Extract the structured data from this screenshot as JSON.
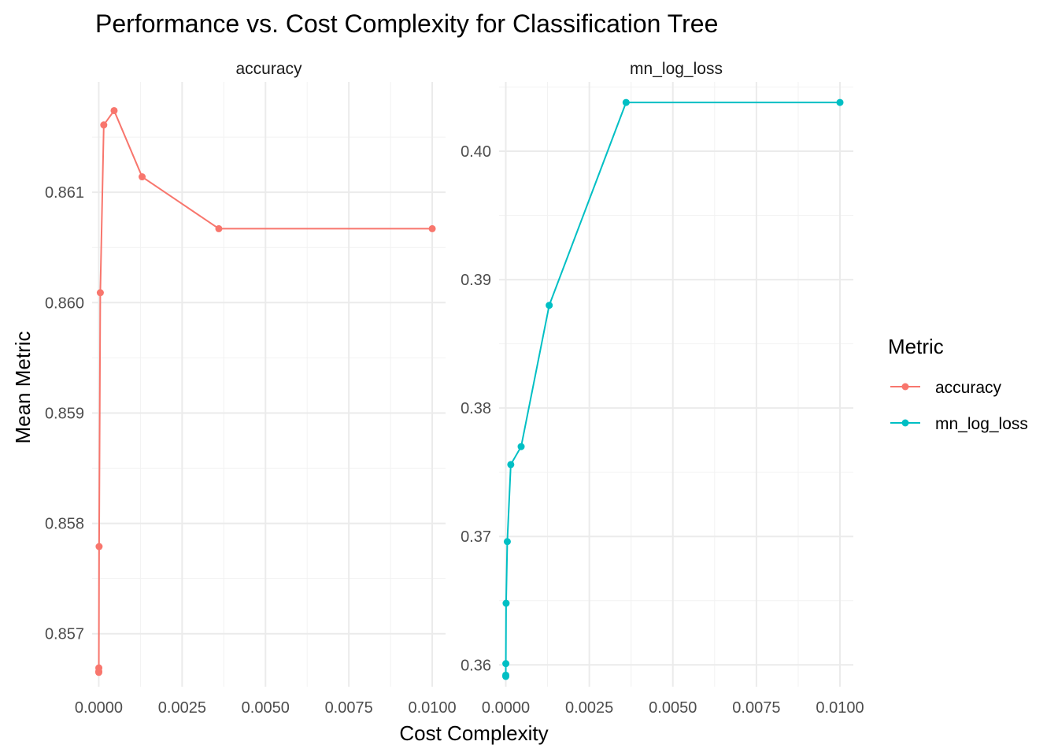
{
  "chart_data": {
    "type": "line",
    "title": "Performance vs. Cost Complexity for Classification Tree",
    "xlabel": "Cost Complexity",
    "ylabel": "Mean Metric",
    "legend": {
      "title": "Metric",
      "position": "right"
    },
    "grid": true,
    "x_ticks": [
      "0.0000",
      "0.0025",
      "0.0050",
      "0.0075",
      "0.0100"
    ],
    "xlim": [
      -0.0002,
      0.0104
    ],
    "panels": [
      {
        "name": "accuracy",
        "color": "#F8766D",
        "ylim": [
          0.85652,
          0.862
        ],
        "y_ticks": [
          0.857,
          0.858,
          0.859,
          0.86,
          0.861
        ],
        "y_tick_labels": [
          "0.857",
          "0.858",
          "0.859",
          "0.860",
          "0.861"
        ],
        "x": [
          1e-07,
          4.6e-07,
          2.1e-06,
          1e-05,
          4.6e-05,
          0.00015,
          0.00046,
          0.0013,
          0.0036,
          0.01
        ],
        "y": [
          0.85665,
          0.85666,
          0.85669,
          0.85779,
          0.86009,
          0.86161,
          0.86174,
          0.86114,
          0.86067,
          0.86067
        ]
      },
      {
        "name": "mn_log_loss",
        "color": "#00BFC4",
        "ylim": [
          0.3583,
          0.4054
        ],
        "y_ticks": [
          0.36,
          0.37,
          0.38,
          0.39,
          0.4
        ],
        "y_tick_labels": [
          "0.36",
          "0.37",
          "0.38",
          "0.39",
          "0.40"
        ],
        "x": [
          1e-07,
          4.6e-07,
          2.1e-06,
          1e-05,
          4.6e-05,
          0.00015,
          0.00046,
          0.0013,
          0.0036,
          0.01
        ],
        "y": [
          0.3591,
          0.3592,
          0.3601,
          0.3648,
          0.3696,
          0.3756,
          0.377,
          0.388,
          0.4038,
          0.4038
        ]
      }
    ]
  }
}
